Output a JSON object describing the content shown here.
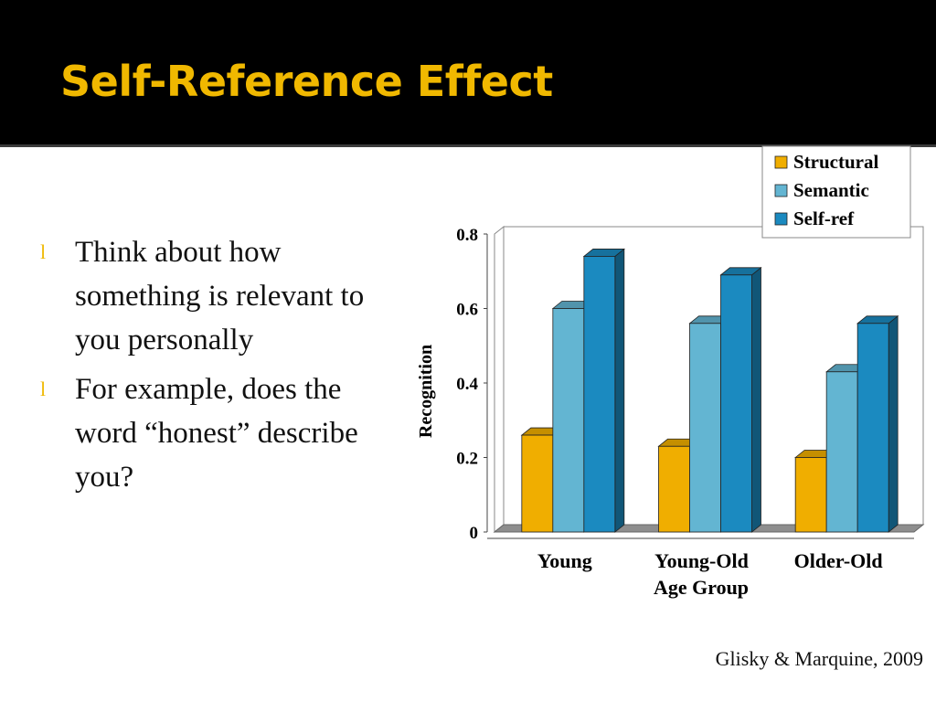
{
  "slide": {
    "title": "Self-Reference Effect",
    "bullets": [
      "Think about  how something is relevant to you personally",
      "For example, does the word “honest” describe you?"
    ],
    "bullet_marker": "l",
    "citation": "Glisky & Marquine, 2009"
  },
  "chart_data": {
    "type": "bar",
    "title": "",
    "xlabel": "Age Group",
    "ylabel": "Recognition",
    "categories": [
      "Young",
      "Young-Old",
      "Older-Old"
    ],
    "series": [
      {
        "name": "Structural",
        "values": [
          0.26,
          0.23,
          0.2
        ],
        "color": "#f0ae00"
      },
      {
        "name": "Semantic",
        "values": [
          0.6,
          0.56,
          0.43
        ],
        "color": "#63b5d2"
      },
      {
        "name": "Self-ref",
        "values": [
          0.74,
          0.69,
          0.56
        ],
        "color": "#1b8ac0"
      }
    ],
    "ylim": [
      0,
      0.8
    ],
    "yticks": [
      "0",
      "0.2",
      "0.4",
      "0.6",
      "0.8"
    ],
    "grid": false,
    "legend_position": "top-right",
    "style": "3d-clustered-bar"
  }
}
